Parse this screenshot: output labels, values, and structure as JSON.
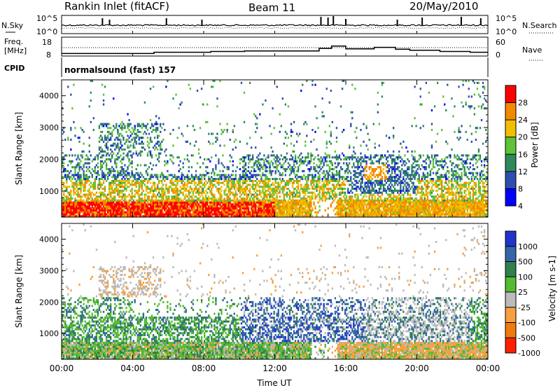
{
  "header": {
    "station": "Rankin Inlet (fitACF)",
    "beam": "Beam 11",
    "date": "20/May/2010"
  },
  "top_panel": {
    "left_label": "N.Sky",
    "left_ticks": [
      "10^5",
      "10^0"
    ],
    "right_label": "N.Search",
    "right_ticks": [
      "10^5",
      "10^0"
    ]
  },
  "freq_panel": {
    "left_label_1": "Freq.",
    "left_label_2": "[MHz]",
    "left_ticks": [
      "18",
      "8"
    ],
    "right_label": "Nave",
    "right_ticks": [
      "60",
      "0"
    ]
  },
  "cpid_panel": {
    "label": "CPID",
    "value": "normalsound (fast) 157"
  },
  "power_panel": {
    "ylabel": "Slant Range [km]",
    "yticks": [
      "1000",
      "2000",
      "3000",
      "4000"
    ],
    "colorbar_label": "Power [dB]",
    "colorbar_ticks": [
      "4",
      "8",
      "12",
      "16",
      "20",
      "24",
      "28"
    ],
    "colors": [
      "#0000ff",
      "#2e4fb0",
      "#2f8a5a",
      "#5fc23a",
      "#f0c000",
      "#f28a00",
      "#ff0000"
    ]
  },
  "velocity_panel": {
    "ylabel": "Slant Range [km]",
    "yticks": [
      "1000",
      "2000",
      "3000",
      "4000"
    ],
    "colorbar_label": "Velocity [m s-1]",
    "colorbar_ticks": [
      "1000",
      "500",
      "100",
      "25",
      "-25",
      "-100",
      "-500",
      "-1000"
    ],
    "colors": [
      "#2233cc",
      "#3366aa",
      "#2f7f4f",
      "#55bb33",
      "#bbbbbb",
      "#f6a040",
      "#ef7a10",
      "#ff2000"
    ]
  },
  "xaxis": {
    "label": "Time UT",
    "ticks": [
      "00:00",
      "04:00",
      "08:00",
      "12:00",
      "16:00",
      "20:00",
      "00:00"
    ]
  },
  "chart_data": {
    "type": "heatmap",
    "title": "Rankin Inlet (fitACF)",
    "x": {
      "label": "Time UT",
      "range_hours": [
        0,
        24
      ]
    },
    "y": {
      "label": "Slant Range [km]",
      "range_km": [
        180,
        4500
      ]
    },
    "power_db_range": [
      0,
      30
    ],
    "velocity_range": [
      -1000,
      1000
    ],
    "freq_mhz_range": [
      8,
      18
    ],
    "nave_range": [
      0,
      60
    ],
    "grid": false
  }
}
